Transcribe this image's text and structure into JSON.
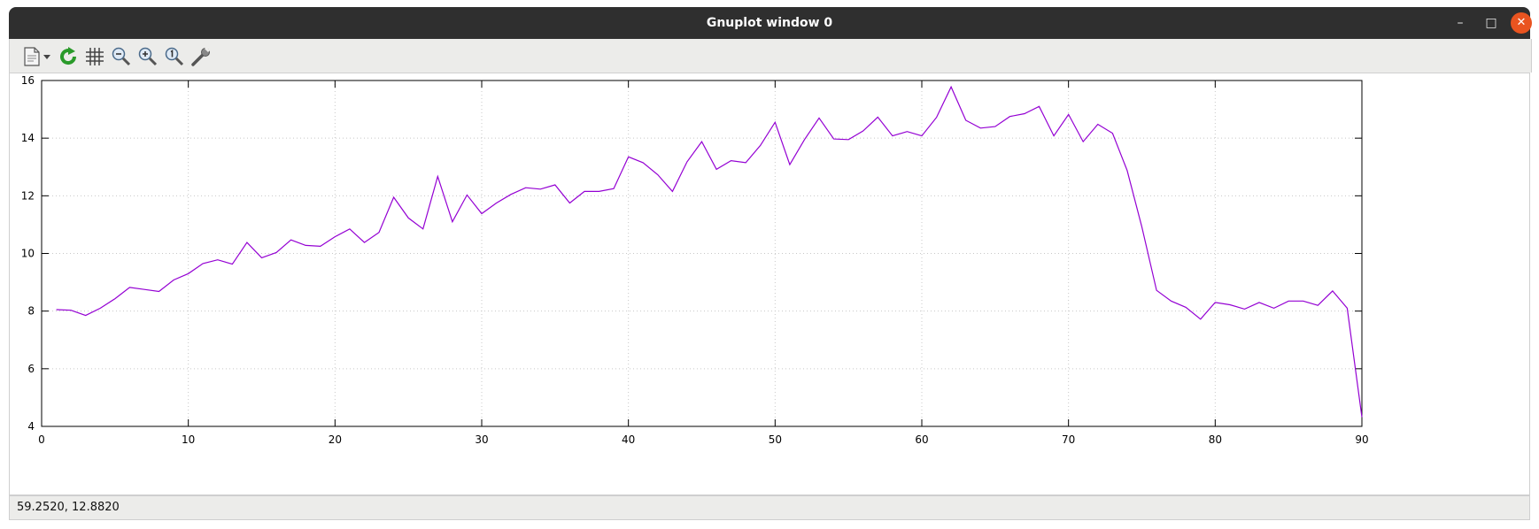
{
  "window": {
    "title": "Gnuplot window 0"
  },
  "titlebar_buttons": {
    "minimize": "–",
    "maximize": "□",
    "close": "✕"
  },
  "toolbar": {
    "items": [
      {
        "icon": "export-icon"
      },
      {
        "icon": "dropdown-arrow-icon"
      },
      {
        "icon": "replot-icon"
      },
      {
        "icon": "grid-icon"
      },
      {
        "icon": "zoom-out-icon"
      },
      {
        "icon": "zoom-in-icon"
      },
      {
        "icon": "zoom-reset-icon"
      },
      {
        "icon": "settings-wrench-icon"
      }
    ]
  },
  "status": {
    "coordinates": "59.2520,  12.8820"
  },
  "colors": {
    "series": "#9400d3",
    "grid": "#c8c8c8",
    "accent_close": "#e95420"
  },
  "chart_data": {
    "type": "line",
    "title": "",
    "xlabel": "",
    "ylabel": "",
    "xlim": [
      0,
      90
    ],
    "ylim": [
      4,
      16
    ],
    "xticks": [
      0,
      10,
      20,
      30,
      40,
      50,
      60,
      70,
      80,
      90
    ],
    "yticks": [
      4,
      6,
      8,
      10,
      12,
      14,
      16
    ],
    "grid": true,
    "series": [
      {
        "x": [
          1,
          2,
          3,
          4,
          5,
          6,
          7,
          8,
          9,
          10,
          11,
          12,
          13,
          14,
          15,
          16,
          17,
          18,
          19,
          20,
          21,
          22,
          23,
          24,
          25,
          26,
          27,
          28,
          29,
          30,
          31,
          32,
          33,
          34,
          35,
          36,
          37,
          38,
          39,
          40,
          41,
          42,
          43,
          44,
          45,
          46,
          47,
          48,
          49,
          50,
          51,
          52,
          53,
          54,
          55,
          56,
          57,
          58,
          59,
          60,
          61,
          62,
          63,
          64,
          65,
          66,
          67,
          68,
          69,
          70,
          71,
          72,
          73,
          74,
          75,
          76,
          77,
          78,
          79,
          80,
          81,
          82,
          83,
          84,
          85,
          86,
          87,
          88,
          89,
          90
        ],
        "y": [
          8.05,
          8.03,
          7.85,
          8.1,
          8.43,
          8.82,
          8.75,
          8.68,
          9.08,
          9.3,
          9.65,
          9.78,
          9.63,
          10.38,
          9.85,
          10.03,
          10.47,
          10.28,
          10.25,
          10.58,
          10.85,
          10.38,
          10.73,
          11.95,
          11.23,
          10.85,
          12.67,
          11.1,
          12.03,
          11.38,
          11.75,
          12.05,
          12.28,
          12.23,
          12.38,
          11.75,
          12.15,
          12.15,
          12.25,
          13.35,
          13.15,
          12.73,
          12.15,
          13.18,
          13.88,
          12.92,
          13.22,
          13.15,
          13.75,
          14.55,
          13.08,
          13.95,
          14.7,
          13.97,
          13.95,
          14.25,
          14.73,
          14.08,
          14.23,
          14.08,
          14.72,
          15.78,
          14.62,
          14.35,
          14.4,
          14.75,
          14.85,
          15.1,
          14.08,
          14.82,
          13.88,
          14.48,
          14.17,
          12.88,
          10.92,
          8.72,
          8.35,
          8.13,
          7.72,
          8.3,
          8.22,
          8.07,
          8.3,
          8.1,
          8.35,
          8.35,
          8.2,
          8.7,
          8.1,
          4.32
        ]
      }
    ]
  }
}
